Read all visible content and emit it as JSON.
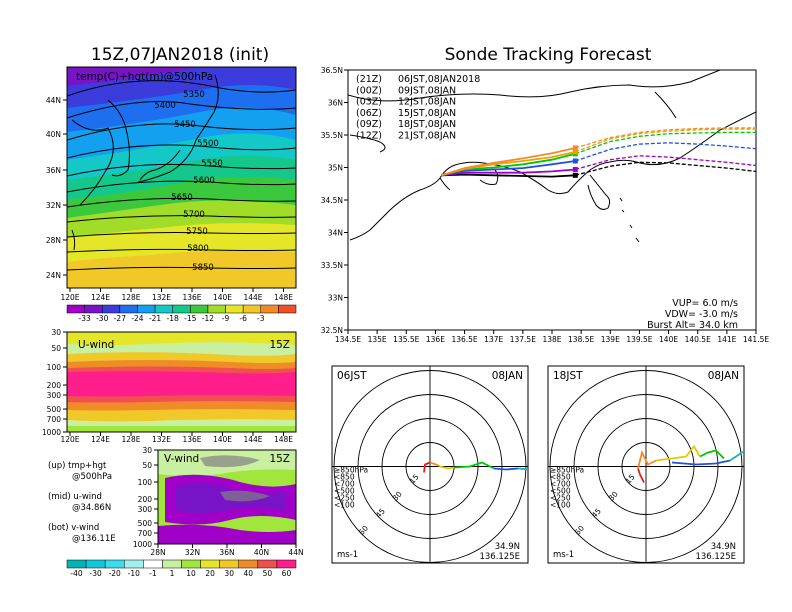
{
  "left": {
    "title": "15Z,07JAN2018 (init)",
    "temp_map": {
      "annotation": "temp(C)+hgt(m)@500hPa",
      "lat_ticks": [
        "44N",
        "40N",
        "36N",
        "32N",
        "28N",
        "24N"
      ],
      "lon_ticks": [
        "120E",
        "124E",
        "128E",
        "132E",
        "136E",
        "140E",
        "144E",
        "148E"
      ],
      "contour_labels": [
        "5350",
        "5400",
        "5450",
        "5500",
        "5550",
        "5600",
        "5650",
        "5700",
        "5750",
        "5800",
        "5850"
      ],
      "colorbar_labels": [
        "-33",
        "-30",
        "-27",
        "-24",
        "-21",
        "-18",
        "-15",
        "-12",
        "-9",
        "-6",
        "-3"
      ],
      "colorbar_colors": [
        "#a000c8",
        "#7814c8",
        "#3c3cdc",
        "#1e6ef0",
        "#14a0f0",
        "#14c8c8",
        "#14c88c",
        "#3cc83c",
        "#a0dc28",
        "#e6e628",
        "#f0c828",
        "#f08c28",
        "#f05028"
      ]
    },
    "u_wind": {
      "label": "U-wind",
      "time": "15Z",
      "p_ticks": [
        "30",
        "50",
        "100",
        "200",
        "300",
        "500",
        "700",
        "1000"
      ],
      "lon_ticks": [
        "120E",
        "124E",
        "128E",
        "132E",
        "136E",
        "140E",
        "144E",
        "148E"
      ]
    },
    "v_wind": {
      "label": "V-wind",
      "time": "15Z",
      "p_ticks": [
        "30",
        "50",
        "100",
        "200",
        "300",
        "500",
        "700",
        "1000"
      ],
      "lat_ticks": [
        "28N",
        "32N",
        "36N",
        "40N",
        "44N"
      ]
    },
    "legend_notes": [
      {
        "line1": "(up)  tmp+hgt",
        "line2": "@500hPa"
      },
      {
        "line1": "(mid)  u-wind",
        "line2": "@34.86N"
      },
      {
        "line1": "(bot)  v-wind",
        "line2": "@136.11E"
      }
    ],
    "wind_colorbar": {
      "labels": [
        "-40",
        "-30",
        "-20",
        "-10",
        "-1",
        "1",
        "10",
        "20",
        "30",
        "40",
        "50",
        "60"
      ],
      "colors": [
        "#00b4b4",
        "#14c8dc",
        "#3cdcf0",
        "#a0f0f0",
        "#ffffff",
        "#c8f0a0",
        "#a0e63c",
        "#e6e628",
        "#f0c828",
        "#f08c28",
        "#f05050",
        "#ff1e8c"
      ]
    }
  },
  "track": {
    "title": "Sonde Tracking Forecast",
    "lat_ticks": [
      "36.5N",
      "36N",
      "35.5N",
      "35N",
      "34.5N",
      "34N",
      "33.5N",
      "33N",
      "32.5N"
    ],
    "lon_ticks": [
      "134.5E",
      "135E",
      "135.5E",
      "136E",
      "136.5E",
      "137E",
      "137.5E",
      "138E",
      "138.5E",
      "139E",
      "139.5E",
      "140E",
      "140.5E",
      "141E",
      "141.5E"
    ],
    "launches": [
      {
        "code": "(21Z)",
        "label": "06JST,08JAN2018",
        "color": "#000000"
      },
      {
        "code": "(00Z)",
        "label": "09JST,08JAN",
        "color": "#a000c8"
      },
      {
        "code": "(03Z)",
        "label": "12JST,08JAN",
        "color": "#1e50e6"
      },
      {
        "code": "(06Z)",
        "label": "15JST,08JAN",
        "color": "#00c800"
      },
      {
        "code": "(09Z)",
        "label": "18JST,08JAN",
        "color": "#f0a000"
      },
      {
        "code": "(12Z)",
        "label": "21JST,08JAN",
        "color": "#f08c28"
      }
    ],
    "params": {
      "vup": "VUP=  6.0  m/s",
      "vdw": "VDW=  -3.0  m/s",
      "burst": "Burst Alt=  34.0  km"
    }
  },
  "polars": [
    {
      "time": "06JST",
      "date": "08JAN",
      "lat": "34.9N",
      "lon": "136.125E",
      "units": "ms-1"
    },
    {
      "time": "18JST",
      "date": "08JAN",
      "lat": "34.9N",
      "lon": "136.125E",
      "units": "ms-1"
    }
  ],
  "polar_common": {
    "ring_labels": [
      "15",
      "30",
      "45",
      "60"
    ],
    "level_legend": [
      {
        "label": "≥850hPa",
        "color": "#e61e1e"
      },
      {
        "label": "<850",
        "color": "#f08c28"
      },
      {
        "label": "<700",
        "color": "#e6c800"
      },
      {
        "label": "<500",
        "color": "#00c800"
      },
      {
        "label": "<250",
        "color": "#1e50e6"
      },
      {
        "label": "<100",
        "color": "#14b4b4"
      }
    ]
  },
  "chart_data": [
    {
      "type": "heatmap",
      "title": "15Z,07JAN2018 (init)",
      "subtitle": "temp(C)+hgt(m)@500hPa",
      "x": "longitude",
      "xlim": [
        120,
        150
      ],
      "y": "latitude",
      "ylim": [
        22,
        47
      ],
      "height_contours": [
        5350,
        5400,
        5450,
        5500,
        5550,
        5600,
        5650,
        5700,
        5750,
        5800,
        5850
      ],
      "temperature_levels": [
        -33,
        -30,
        -27,
        -24,
        -21,
        -18,
        -15,
        -12,
        -9,
        -6,
        -3
      ]
    },
    {
      "type": "heatmap",
      "title": "U-wind",
      "subtitle": "u-wind @34.86N",
      "xlim": [
        120,
        150
      ],
      "ylim": [
        1000,
        30
      ],
      "levels": [
        -40,
        -30,
        -20,
        -10,
        -1,
        1,
        10,
        20,
        30,
        40,
        50,
        60
      ]
    },
    {
      "type": "heatmap",
      "title": "V-wind",
      "subtitle": "v-wind @136.11E",
      "xlim": [
        28,
        44
      ],
      "ylim": [
        1000,
        30
      ],
      "levels": [
        -40,
        -30,
        -20,
        -10,
        -1,
        1,
        10,
        20,
        30,
        40,
        50,
        60
      ]
    },
    {
      "type": "line",
      "title": "Sonde Tracking Forecast",
      "xlim": [
        134.5,
        141.5
      ],
      "ylim": [
        32.5,
        36.5
      ],
      "series": [
        {
          "name": "(21Z) 06JST,08JAN2018",
          "x": [
            136.1,
            136.5,
            137.0,
            137.5,
            138.0,
            138.4,
            139.0,
            139.5,
            140.0,
            140.5,
            141.0,
            141.5
          ],
          "y": [
            34.88,
            34.89,
            34.88,
            34.87,
            34.86,
            34.88,
            35.02,
            35.08,
            35.07,
            35.03,
            34.99,
            34.94
          ]
        },
        {
          "name": "(00Z) 09JST,08JAN",
          "x": [
            136.1,
            136.5,
            137.0,
            137.5,
            138.0,
            138.4,
            139.0,
            139.5,
            140.0,
            140.5,
            141.0,
            141.5
          ],
          "y": [
            34.88,
            34.92,
            34.92,
            34.92,
            34.94,
            34.97,
            35.12,
            35.18,
            35.16,
            35.12,
            35.08,
            35.03
          ]
        },
        {
          "name": "(03Z) 12JST,08JAN",
          "x": [
            136.1,
            136.5,
            137.0,
            137.5,
            138.0,
            138.4,
            139.0,
            139.5,
            140.0,
            140.5,
            141.0,
            141.5
          ],
          "y": [
            34.88,
            34.95,
            34.97,
            34.99,
            35.05,
            35.1,
            35.28,
            35.36,
            35.38,
            35.36,
            35.33,
            35.29
          ]
        },
        {
          "name": "(06Z) 15JST,08JAN",
          "x": [
            136.1,
            136.5,
            137.0,
            137.5,
            138.0,
            138.4,
            139.0,
            139.5,
            140.0,
            140.5,
            141.0,
            141.5
          ],
          "y": [
            34.88,
            34.97,
            35.0,
            35.05,
            35.12,
            35.21,
            35.4,
            35.48,
            35.52,
            35.53,
            35.54,
            35.54
          ]
        },
        {
          "name": "(09Z) 18JST,08JAN",
          "x": [
            136.1,
            136.5,
            137.0,
            137.5,
            138.0,
            138.4,
            139.0,
            139.5,
            140.0,
            140.5,
            141.0,
            141.5
          ],
          "y": [
            34.88,
            34.98,
            35.05,
            35.1,
            35.16,
            35.24,
            35.44,
            35.52,
            35.56,
            35.58,
            35.59,
            35.59
          ]
        },
        {
          "name": "(12Z) 21JST,08JAN",
          "x": [
            136.1,
            136.5,
            137.0,
            137.5,
            138.0,
            138.4,
            139.0,
            139.5,
            140.0,
            140.5,
            141.0,
            141.5
          ],
          "y": [
            34.88,
            34.99,
            35.07,
            35.14,
            35.22,
            35.3,
            35.46,
            35.54,
            35.58,
            35.6,
            35.61,
            35.61
          ]
        }
      ]
    }
  ]
}
